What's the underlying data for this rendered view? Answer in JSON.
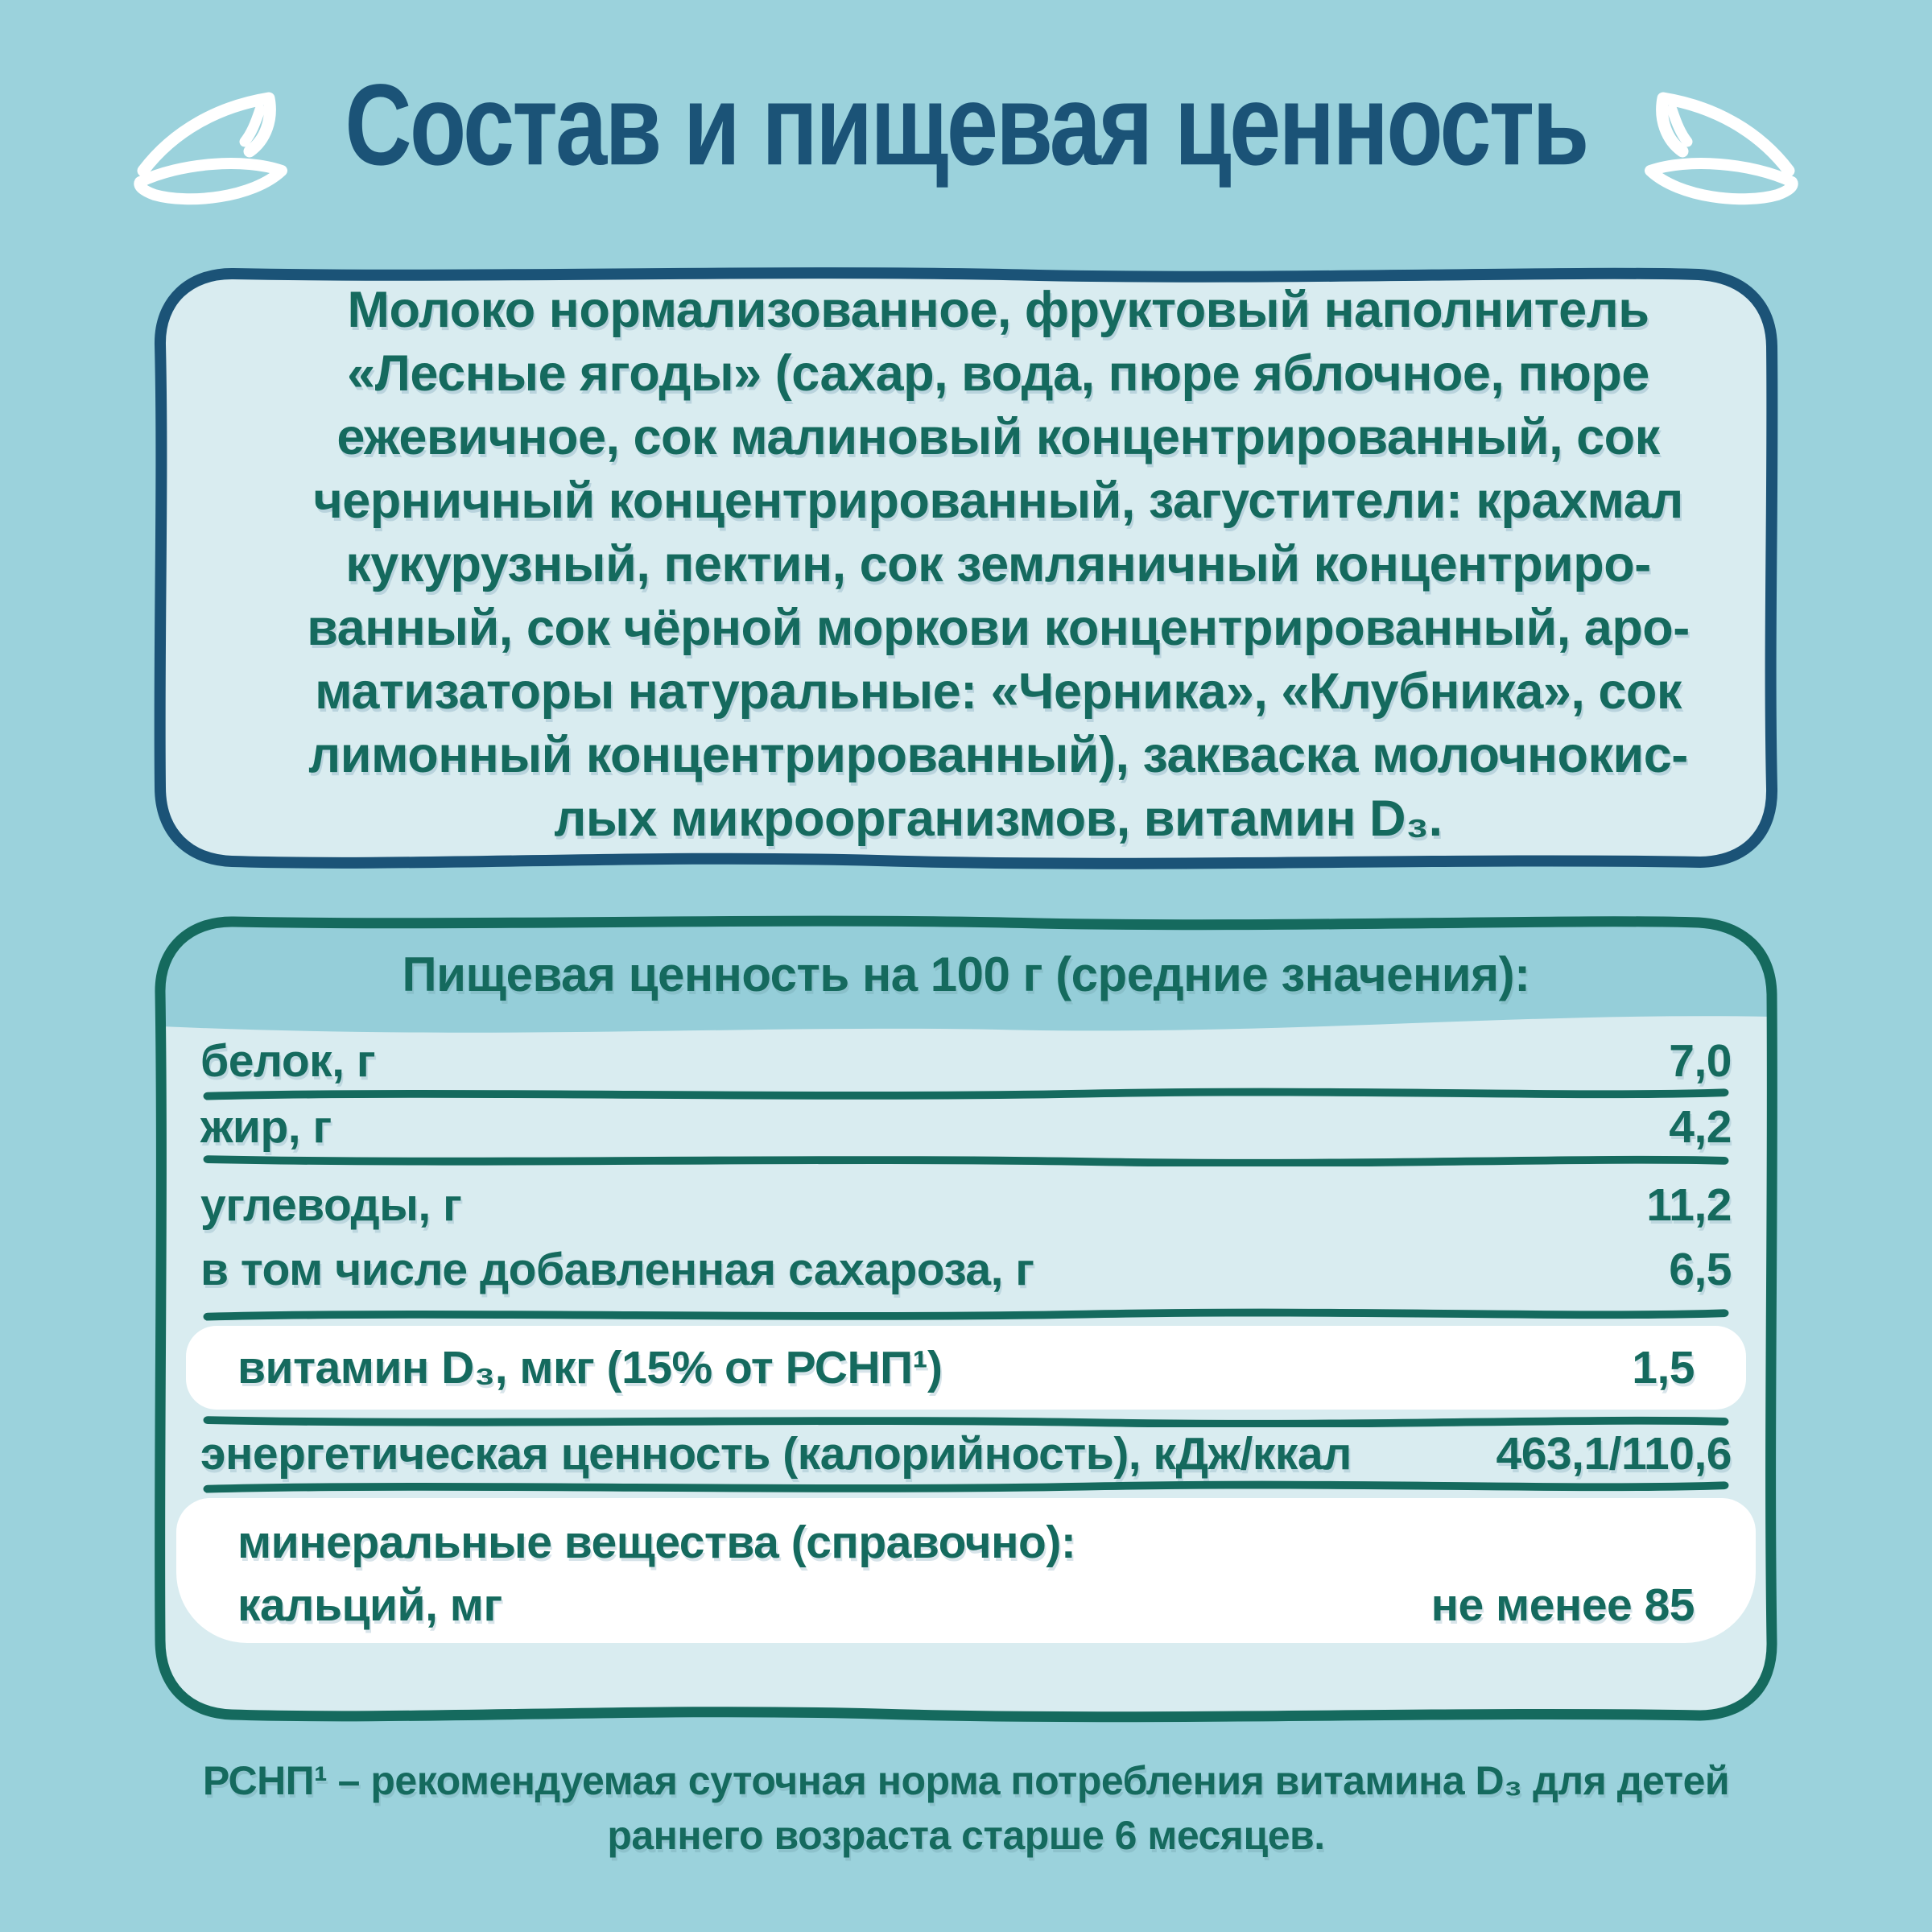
{
  "page": {
    "title": "Состав и пищевая ценность"
  },
  "colors": {
    "background": "#9BD2DC",
    "panel_fill": "#D9ECF0",
    "title_navy": "#1B5377",
    "text_teal": "#156A5E",
    "header_band": "#95CED9",
    "highlight_row": "#FFFFFF"
  },
  "icons": {
    "left": "leaf-sprout-icon",
    "right": "leaf-sprout-icon"
  },
  "ingredients": {
    "lines": [
      "Молоко нормализованное, фруктовый наполнитель",
      "«Лесные ягоды» (сахар, вода, пюре яблочное, пюре",
      "ежевичное, сок малиновый концентрированный, сок",
      "черничный концентрированный, загустители: крахмал",
      "кукурузный, пектин, сок земляничный концентриро-",
      "ванный, сок чёрной моркови концентрированный, аро-",
      "матизаторы натуральные: «Черника», «Клубника», сок",
      "лимонный концентрированный), закваска молочнокис-",
      "лых микроорганизмов, витамин D₃."
    ]
  },
  "nutrition": {
    "header": "Пищевая ценность на 100 г (средние значения):",
    "rows": [
      {
        "label": "белок, г",
        "value": "7,0",
        "highlight": false
      },
      {
        "label": "жир, г",
        "value": "4,2",
        "highlight": false
      },
      {
        "label": "углеводы, г",
        "value": "11,2",
        "highlight": false
      },
      {
        "label": "в том числе добавленная сахароза, г",
        "value": "6,5",
        "highlight": false
      },
      {
        "label": "витамин D₃, мкг (15% от РСНП¹)",
        "value": "1,5",
        "highlight": true
      },
      {
        "label": "энергетическая ценность (калорийность), кДж/ккал",
        "value": "463,1/110,6",
        "highlight": false
      },
      {
        "label": "минеральные вещества (справочно):",
        "value": "",
        "highlight": true
      },
      {
        "label": "кальций, мг",
        "value": "не менее 85",
        "highlight": true
      }
    ]
  },
  "footnote": {
    "lines": [
      "РСНП¹ – рекомендуемая суточная норма потребления витамина D₃ для детей",
      "раннего возраста старше 6 месяцев."
    ]
  }
}
